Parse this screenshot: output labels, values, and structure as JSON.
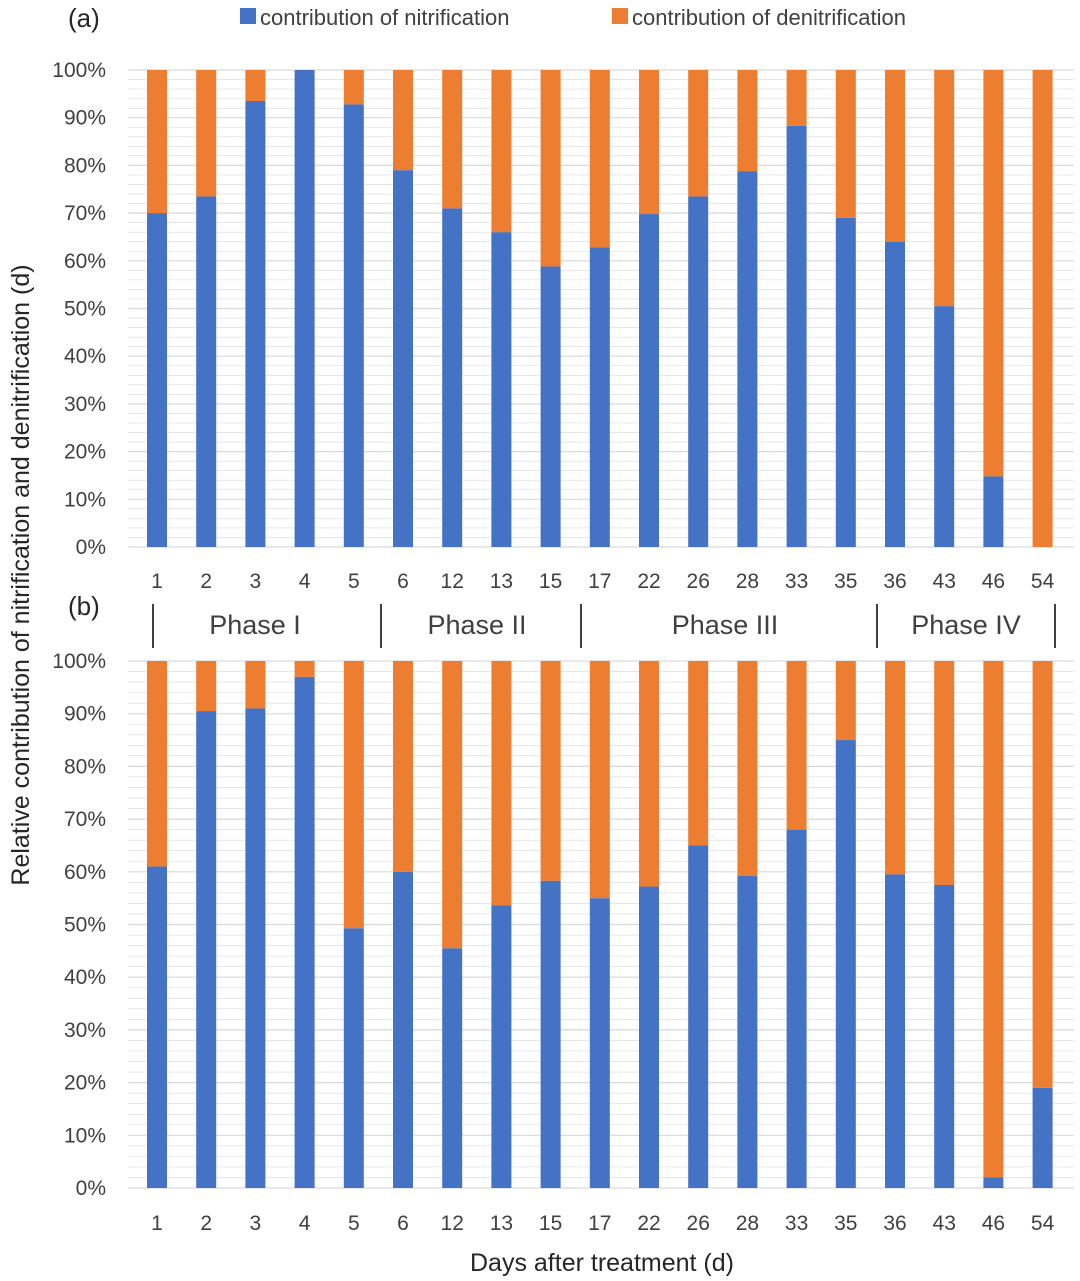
{
  "legend": {
    "nitrification_label": "contribution of nitrification",
    "denitrification_label": "contribution of denitrification"
  },
  "colors": {
    "nitrification": "#4472c4",
    "denitrification": "#ed7d31",
    "grid": "#d9d9d9"
  },
  "axes": {
    "ylabel": "Relative contribution of nitrification and denitrification (d)",
    "xlabel": "Days after treatment (d)",
    "ytick_labels": [
      "0%",
      "10%",
      "20%",
      "30%",
      "40%",
      "50%",
      "60%",
      "70%",
      "80%",
      "90%",
      "100%"
    ]
  },
  "phases": [
    "Phase I",
    "Phase II",
    "Phase III",
    "Phase IV"
  ],
  "chart_data": [
    {
      "type": "bar",
      "stacked": true,
      "panel": "(a)",
      "categories": [
        "1",
        "2",
        "3",
        "4",
        "5",
        "6",
        "12",
        "13",
        "15",
        "17",
        "22",
        "26",
        "28",
        "33",
        "35",
        "36",
        "43",
        "46",
        "54"
      ],
      "series": [
        {
          "name": "contribution of nitrification",
          "values": [
            70,
            73.5,
            93.5,
            100,
            92.8,
            79,
            71,
            66,
            58.8,
            62.8,
            69.8,
            73.5,
            78.8,
            88.3,
            69,
            64,
            50.5,
            14.8,
            0
          ]
        },
        {
          "name": "contribution of denitrification",
          "values": [
            30,
            26.5,
            6.5,
            0,
            7.2,
            21,
            29,
            34,
            41.2,
            37.2,
            30.2,
            26.5,
            21.2,
            11.7,
            31,
            36,
            49.5,
            85.2,
            100
          ]
        }
      ],
      "ylim": [
        0,
        100
      ],
      "yunit": "%",
      "grid": true,
      "legend_position": "top"
    },
    {
      "type": "bar",
      "stacked": true,
      "panel": "(b)",
      "categories": [
        "1",
        "2",
        "3",
        "4",
        "5",
        "6",
        "12",
        "13",
        "15",
        "17",
        "22",
        "26",
        "28",
        "33",
        "35",
        "36",
        "43",
        "46",
        "54"
      ],
      "series": [
        {
          "name": "contribution of nitrification",
          "values": [
            61,
            90.5,
            91,
            97,
            49.3,
            60,
            45.5,
            53.6,
            58.3,
            55,
            57.2,
            65,
            59.2,
            68,
            85,
            59.5,
            57.5,
            2,
            19
          ]
        },
        {
          "name": "contribution of denitrification",
          "values": [
            39,
            9.5,
            9,
            3,
            50.7,
            40,
            54.5,
            46.4,
            41.7,
            45,
            42.8,
            35,
            40.8,
            32,
            15,
            40.5,
            42.5,
            98,
            81
          ]
        }
      ],
      "ylim": [
        0,
        100
      ],
      "yunit": "%",
      "grid": true,
      "phase_groups": [
        {
          "label": "Phase I",
          "start_index": 0,
          "end_index": 4
        },
        {
          "label": "Phase II",
          "start_index": 5,
          "end_index": 8
        },
        {
          "label": "Phase III",
          "start_index": 9,
          "end_index": 14
        },
        {
          "label": "Phase IV",
          "start_index": 15,
          "end_index": 18
        }
      ]
    }
  ]
}
